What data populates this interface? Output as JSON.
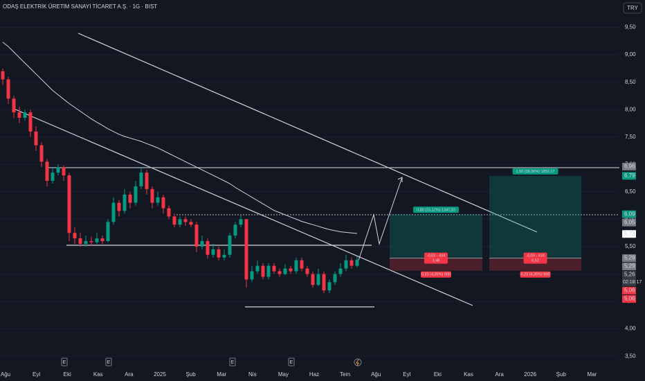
{
  "chart_data": {
    "type": "candlestick",
    "title": "ODAŞ ELEKTRİK ÜRETİM SANAYİ TİCARET A.Ş. · 1G · BIST",
    "currency": "TRY",
    "ylim": [
      3.3,
      10.0
    ],
    "yticks": [
      {
        "value": 3.5,
        "label": "3,50"
      },
      {
        "value": 4,
        "label": "4,00"
      },
      {
        "value": 4.5,
        "label": "4,50"
      },
      {
        "value": 5,
        "label": "5,00"
      },
      {
        "value": 5.5,
        "label": "5,50"
      },
      {
        "value": 6,
        "label": "6,00"
      },
      {
        "value": 6.5,
        "label": "6,50"
      },
      {
        "value": 7,
        "label": "7,00"
      },
      {
        "value": 7.5,
        "label": "7,50"
      },
      {
        "value": 8,
        "label": "8,00"
      },
      {
        "value": 8.5,
        "label": "8,50"
      },
      {
        "value": 9,
        "label": "9,00"
      },
      {
        "value": 9.5,
        "label": "9,50"
      }
    ],
    "grid": true,
    "up_color": "#089981",
    "down_color": "#f23645",
    "ma_color": "#d1d4dc",
    "xlabels": [
      "Ağu",
      "Eyl",
      "Eki",
      "Kas",
      "Ara",
      "2025",
      "Şub",
      "Mar",
      "Nis",
      "May",
      "Haz",
      "Tem",
      "Ağu",
      "Eyl",
      "Eki",
      "Kas",
      "Ara",
      "2026",
      "Şub",
      "Mar"
    ],
    "open": [
      8.7,
      8.55,
      8.2,
      7.95,
      7.85,
      7.95,
      7.6,
      7.35,
      7.05,
      6.7,
      6.85,
      6.95,
      6.8,
      5.75,
      5.65,
      5.55,
      5.6,
      5.58,
      5.65,
      5.6,
      5.95,
      6.3,
      6.15,
      6.45,
      6.3,
      6.6,
      6.85,
      6.55,
      6.3,
      6.4,
      6.2,
      6.05,
      5.9,
      6.0,
      5.95,
      5.9,
      5.5,
      5.6,
      5.35,
      5.45,
      5.3,
      5.35,
      5.7,
      5.9,
      6.0,
      4.9,
      5.05,
      5.15,
      4.95,
      5.15,
      5.05,
      5.0,
      5.1,
      5.05,
      5.25,
      5.1,
      5.0,
      4.8,
      5.0,
      4.7,
      4.85,
      5.0,
      5.1,
      5.25,
      5.15
    ],
    "high": [
      8.75,
      8.6,
      8.25,
      8.05,
      8.0,
      8.0,
      7.7,
      7.4,
      7.1,
      6.95,
      7.0,
      6.98,
      6.85,
      5.85,
      5.75,
      5.7,
      5.68,
      5.75,
      5.7,
      6.0,
      6.4,
      6.35,
      6.55,
      6.5,
      6.7,
      6.95,
      6.9,
      6.6,
      6.5,
      6.45,
      6.25,
      6.1,
      6.05,
      6.05,
      6.0,
      5.95,
      5.7,
      5.65,
      5.55,
      5.5,
      5.45,
      5.75,
      5.95,
      6.07,
      6.0,
      5.15,
      5.25,
      5.2,
      5.2,
      5.2,
      5.1,
      5.18,
      5.15,
      5.3,
      5.3,
      5.15,
      5.05,
      5.1,
      5.05,
      4.9,
      5.05,
      5.2,
      5.35,
      5.3,
      5.32
    ],
    "low": [
      8.45,
      8.1,
      7.85,
      7.75,
      7.8,
      7.5,
      7.25,
      6.95,
      6.6,
      6.65,
      6.8,
      6.7,
      5.6,
      5.55,
      5.5,
      5.5,
      5.52,
      5.55,
      5.55,
      5.58,
      5.9,
      6.05,
      6.1,
      6.2,
      6.25,
      6.55,
      6.45,
      6.2,
      6.25,
      6.1,
      6.0,
      5.85,
      5.85,
      5.88,
      5.85,
      5.4,
      5.45,
      5.28,
      5.3,
      5.25,
      5.25,
      5.3,
      5.65,
      5.85,
      4.75,
      4.85,
      5.0,
      4.9,
      4.9,
      5.0,
      4.95,
      4.98,
      5.0,
      5.0,
      5.05,
      4.95,
      4.75,
      4.78,
      4.65,
      4.65,
      4.8,
      4.95,
      5.05,
      5.1,
      5.12
    ],
    "close": [
      8.55,
      8.2,
      7.95,
      7.85,
      7.95,
      7.6,
      7.35,
      7.05,
      6.7,
      6.85,
      6.95,
      6.8,
      5.75,
      5.65,
      5.55,
      5.6,
      5.58,
      5.65,
      5.6,
      5.95,
      6.3,
      6.15,
      6.45,
      6.3,
      6.6,
      6.85,
      6.55,
      6.3,
      6.4,
      6.2,
      6.05,
      5.9,
      6.0,
      5.95,
      5.9,
      5.5,
      5.6,
      5.35,
      5.45,
      5.3,
      5.35,
      5.7,
      5.9,
      6.0,
      4.9,
      5.05,
      5.15,
      4.95,
      5.15,
      5.05,
      5.0,
      5.1,
      5.05,
      5.25,
      5.1,
      5.0,
      4.8,
      5.0,
      4.7,
      4.85,
      5.0,
      5.1,
      5.25,
      5.15,
      5.26
    ],
    "ma": [
      9.23,
      9.15,
      9.05,
      8.95,
      8.85,
      8.75,
      8.65,
      8.55,
      8.45,
      8.35,
      8.27,
      8.19,
      8.11,
      8.04,
      7.97,
      7.9,
      7.83,
      7.77,
      7.71,
      7.65,
      7.6,
      7.55,
      7.51,
      7.48,
      7.45,
      7.42,
      7.38,
      7.34,
      7.3,
      7.25,
      7.2,
      7.15,
      7.1,
      7.05,
      7.0,
      6.95,
      6.9,
      6.85,
      6.8,
      6.75,
      6.7,
      6.65,
      6.58,
      6.52,
      6.46,
      6.4,
      6.34,
      6.28,
      6.22,
      6.16,
      6.12,
      6.08,
      6.04,
      6.0,
      5.96,
      5.93,
      5.9,
      5.87,
      5.84,
      5.81,
      5.79,
      5.77,
      5.76,
      5.75,
      5.74
    ],
    "positions": [
      {
        "target": 6.09,
        "entry": 5.29,
        "stop": 5.06,
        "profit_label": "0,80 (15,12%) 1347,83",
        "entry_label": [
          "-0,03 - 434",
          "3,48"
        ],
        "stop_label": "0,23 (4,35%) 900"
      },
      {
        "target": 6.79,
        "entry": 5.29,
        "stop": 5.06,
        "profit_label": "1,50 (28,36%) 1852,17",
        "entry_label": [
          "-0,03 - 434",
          "6,52"
        ],
        "stop_label": "0,23 (4,35%) 900"
      }
    ],
    "price_tags": [
      {
        "value": 6.96,
        "label": "6,96",
        "color": "#787b86"
      },
      {
        "value": 6.79,
        "label": "6,79",
        "color": "#089981"
      },
      {
        "value": 6.09,
        "label": "6,09",
        "color": "#089981"
      },
      {
        "value": 6.05,
        "label": "6,05",
        "color": "#787b86"
      },
      {
        "value": 5.73,
        "label": "5,73",
        "color": "#ffffff"
      },
      {
        "value": 5.29,
        "label": "5,29",
        "color": "#787b86"
      },
      {
        "value": 5.29,
        "label": "5,29",
        "color": "#787b86"
      },
      {
        "value": 5.26,
        "label": "5,26",
        "color": "#363a45",
        "countdown": "02:18:17"
      },
      {
        "value": 5.06,
        "label": "5,06",
        "color": "#f23645"
      },
      {
        "value": 5.06,
        "label": "5,06",
        "color": "#f23645"
      }
    ],
    "events": [
      "E",
      "E",
      "E",
      "E"
    ]
  }
}
